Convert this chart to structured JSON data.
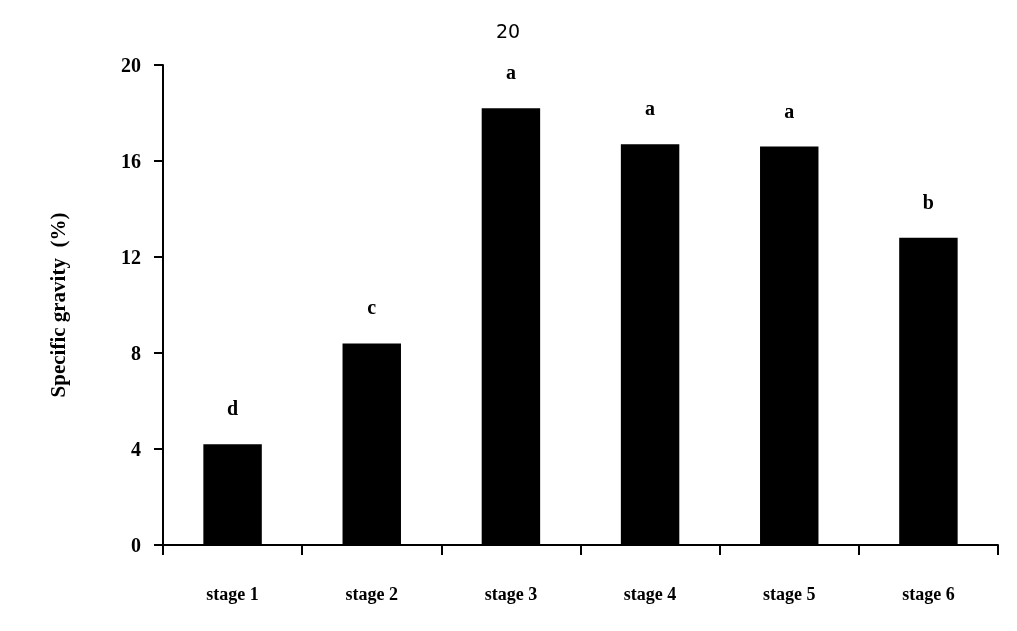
{
  "chart_data": {
    "type": "bar",
    "title": "20",
    "ylabel": "Specific gravity  (%)",
    "categories": [
      "stage 1",
      "stage 2",
      "stage 3",
      "stage 4",
      "stage 5",
      "stage 6"
    ],
    "values": [
      4.2,
      8.4,
      18.2,
      16.7,
      16.6,
      12.8
    ],
    "color": "#000000",
    "ylim": [
      0,
      20
    ],
    "yticks": [
      0,
      4,
      8,
      12,
      16,
      20
    ],
    "grid": false,
    "annotations": [
      {
        "text": "d",
        "x": "stage 1",
        "y": 4.2
      },
      {
        "text": "c",
        "x": "stage 2",
        "y": 8.4
      },
      {
        "text": "a",
        "x": "stage 3",
        "y": 18.2
      },
      {
        "text": "a",
        "x": "stage 4",
        "y": 16.7
      },
      {
        "text": "a",
        "x": "stage 5",
        "y": 16.6
      },
      {
        "text": "b",
        "x": "stage 6",
        "y": 12.8
      }
    ]
  }
}
